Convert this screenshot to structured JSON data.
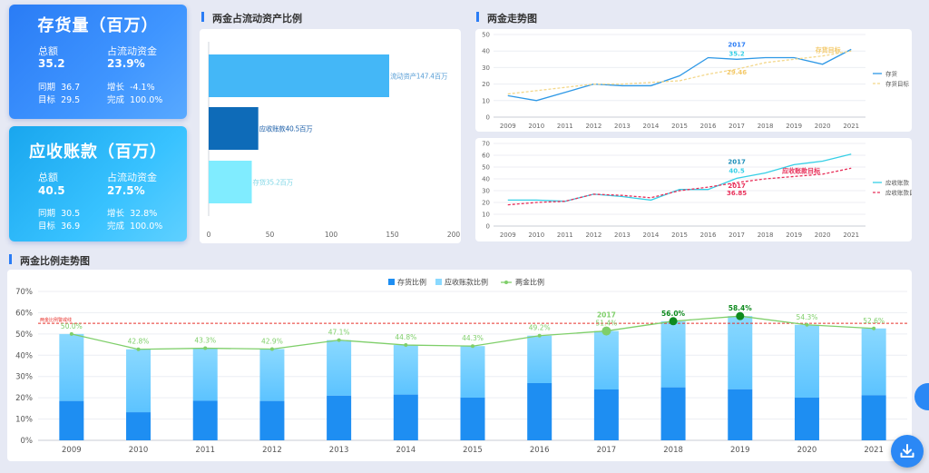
{
  "inventory_card": {
    "title": "存货量（百万）",
    "total_label": "总额",
    "total_value": "35.2",
    "share_label": "占流动资金",
    "share_value": "23.9%",
    "yoy_label": "同期",
    "yoy_value": "36.7",
    "growth_label": "增长",
    "growth_value": "-4.1%",
    "target_label": "目标",
    "target_value": "29.5",
    "done_label": "完成",
    "done_value": "100.0%"
  },
  "receivable_card": {
    "title": "应收账款（百万）",
    "total_label": "总额",
    "total_value": "40.5",
    "share_label": "占流动资金",
    "share_value": "27.5%",
    "yoy_label": "同期",
    "yoy_value": "30.5",
    "growth_label": "增长",
    "growth_value": "32.8%",
    "target_label": "目标",
    "target_value": "36.9",
    "done_label": "完成",
    "done_value": "100.0%"
  },
  "section_titles": {
    "ratio": "两金占流动资产比例",
    "trend": "两金走势图",
    "combo": "两金比例走势图"
  },
  "colors": {
    "accent": "#2a7cf5",
    "bar_current_assets": "#44b7f7",
    "bar_receivable": "#0e6bb8",
    "bar_inventory": "#80ecff",
    "stock_line": "#2e98e6",
    "stock_target": "#f3d78a",
    "recv_line": "#36cfe6",
    "recv_target": "#e8305a",
    "combo_inventory": "#1e8ef2",
    "combo_recv_top": "#8ad9ff",
    "combo_ratio": "#7fcf6a"
  },
  "chart_data": [
    {
      "id": "ratio",
      "type": "bar",
      "orientation": "horizontal",
      "categories": [
        "流动资产",
        "应收账款",
        "存货"
      ],
      "values": [
        147.4,
        40.5,
        35.2
      ],
      "bar_labels": [
        "流动资产147.4百万",
        "应收账款40.5百万",
        "存货35.2百万"
      ],
      "xlim": [
        0,
        200
      ],
      "xticks": [
        0,
        50,
        100,
        150,
        200
      ]
    },
    {
      "id": "stock_trend",
      "type": "line",
      "x": [
        "2009",
        "2010",
        "2011",
        "2012",
        "2013",
        "2014",
        "2015",
        "2016",
        "2017",
        "2018",
        "2019",
        "2020",
        "2021"
      ],
      "series": [
        {
          "name": "存货",
          "values": [
            13,
            10,
            15,
            20,
            19,
            19,
            25,
            36,
            35,
            36,
            36,
            32,
            41
          ]
        },
        {
          "name": "存货目标",
          "values": [
            14,
            16,
            18,
            20,
            20,
            21,
            22,
            26,
            29,
            33,
            35,
            37,
            40
          ]
        }
      ],
      "ylim": [
        0,
        50
      ],
      "yticks": [
        0,
        10,
        20,
        30,
        40,
        50
      ],
      "annotations": [
        {
          "x": "2017",
          "label": "2017",
          "series": "存货"
        },
        {
          "x": "2017",
          "label": "35.2",
          "series": "存货"
        },
        {
          "x": "2017",
          "label": "29.46",
          "series": "存货目标"
        },
        {
          "x": "2020",
          "label": "存货目标",
          "series": "存货目标"
        }
      ]
    },
    {
      "id": "recv_trend",
      "type": "line",
      "x": [
        "2009",
        "2010",
        "2011",
        "2012",
        "2013",
        "2014",
        "2015",
        "2016",
        "2017",
        "2018",
        "2019",
        "2020",
        "2021"
      ],
      "series": [
        {
          "name": "应收账款",
          "values": [
            22,
            22,
            21,
            27,
            25,
            22,
            31,
            31,
            40.5,
            45,
            52,
            55,
            61
          ]
        },
        {
          "name": "应收账款目标",
          "values": [
            18,
            20,
            21,
            27,
            26,
            24,
            30,
            33,
            36.85,
            40,
            42,
            44,
            49
          ]
        }
      ],
      "ylim": [
        0,
        70
      ],
      "yticks": [
        0,
        10,
        20,
        30,
        40,
        50,
        60,
        70
      ],
      "annotations": [
        {
          "x": "2017",
          "label": "2017",
          "series": "应收账款"
        },
        {
          "x": "2017",
          "label": "40.5",
          "series": "应收账款"
        },
        {
          "x": "2017",
          "label": "2017",
          "series": "应收账款目标"
        },
        {
          "x": "2017",
          "label": "36.85",
          "series": "应收账款目标"
        },
        {
          "x": "2019",
          "label": "应收账款目标",
          "series": "应收账款目标"
        }
      ]
    },
    {
      "id": "ratio_trend",
      "type": "bar",
      "stacked": true,
      "categories": [
        "2009",
        "2010",
        "2011",
        "2012",
        "2013",
        "2014",
        "2015",
        "2016",
        "2017",
        "2018",
        "2019",
        "2020",
        "2021"
      ],
      "series": [
        {
          "name": "存货比例",
          "kind": "bar",
          "values": [
            18.5,
            13.2,
            18.6,
            18.5,
            21,
            21.5,
            20.1,
            26.9,
            23.9,
            24.9,
            24,
            20.1,
            21.2
          ]
        },
        {
          "name": "应收账款比例",
          "kind": "bar",
          "values": [
            31.5,
            29.6,
            24.7,
            24.4,
            26.1,
            23.3,
            24.2,
            22.3,
            27.5,
            31.1,
            34.4,
            34.2,
            31.4
          ]
        },
        {
          "name": "两金比例",
          "kind": "line",
          "values": [
            50.0,
            42.8,
            43.3,
            42.9,
            47.1,
            44.8,
            44.3,
            49.2,
            51.4,
            56.0,
            58.4,
            54.3,
            52.6
          ]
        }
      ],
      "point_labels": [
        "50.0%",
        "42.8%",
        "43.3%",
        "42.9%",
        "47.1%",
        "44.8%",
        "44.3%",
        "49.2%",
        "51.4%",
        "56.0%",
        "58.4%",
        "54.3%",
        "52.6%"
      ],
      "year_annotation": {
        "x": "2017",
        "label": "2017"
      },
      "warning_line": {
        "value": 55,
        "label": "两金比例警戒线"
      },
      "ylim": [
        0,
        70
      ],
      "yticks": [
        "0%",
        "10%",
        "20%",
        "30%",
        "40%",
        "50%",
        "60%",
        "70%"
      ]
    }
  ]
}
